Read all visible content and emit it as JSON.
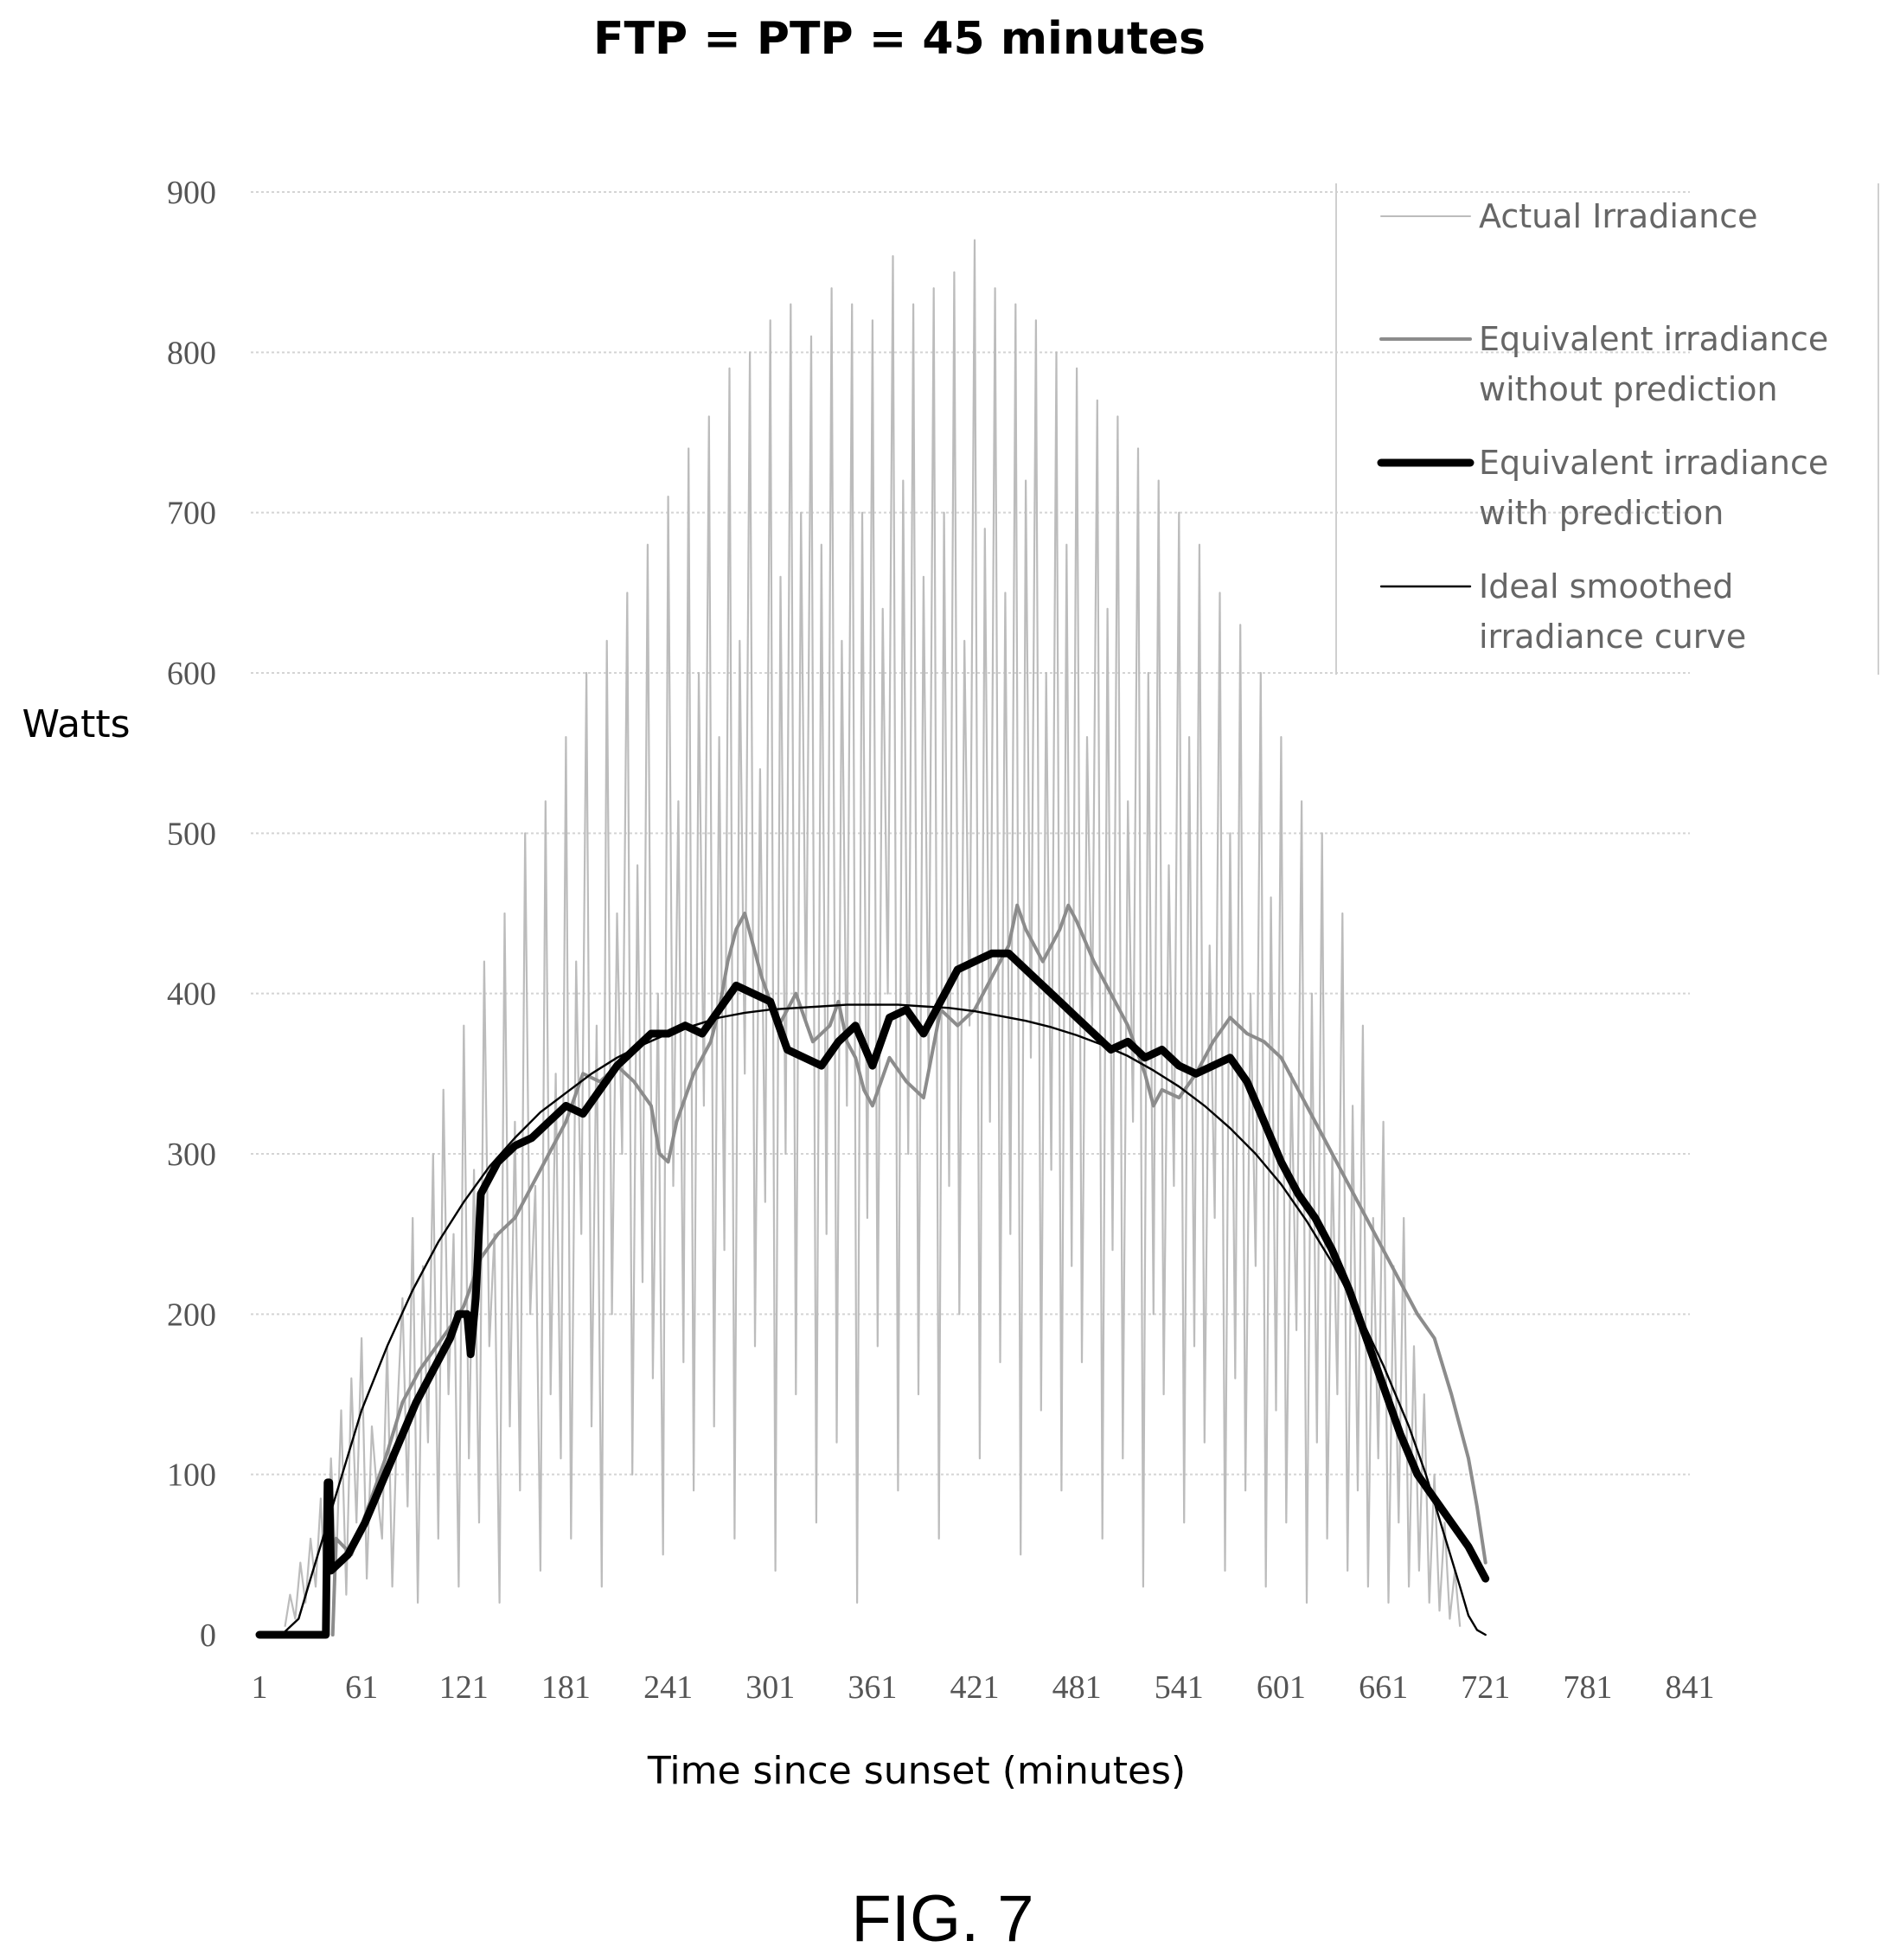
{
  "figure_label": "FIG. 7",
  "chart_data": {
    "type": "line",
    "title": "FTP = PTP = 45 minutes",
    "xlabel": "Time since sunset (minutes)",
    "ylabel": "Watts",
    "ylim": [
      0,
      900
    ],
    "xlim": [
      1,
      841
    ],
    "yticks": [
      "0",
      "100",
      "200",
      "300",
      "400",
      "500",
      "600",
      "700",
      "800",
      "900"
    ],
    "xticks": [
      "1",
      "61",
      "121",
      "181",
      "241",
      "301",
      "361",
      "421",
      "481",
      "541",
      "601",
      "661",
      "721",
      "781",
      "841"
    ],
    "grid": true,
    "legend_position": "top-right",
    "colors": {
      "actual": "#bcbcbc",
      "without_prediction": "#8c8c8c",
      "with_prediction": "#000000",
      "ideal": "#000000",
      "grid": "#d4d4d4"
    },
    "series": [
      {
        "name": "Actual Irradiance",
        "key": "actual",
        "style": "thin-noisy",
        "x_step": 3,
        "x_start": 16,
        "values": [
          5,
          25,
          10,
          45,
          20,
          60,
          30,
          85,
          15,
          110,
          40,
          140,
          25,
          160,
          70,
          185,
          35,
          130,
          90,
          60,
          180,
          30,
          140,
          210,
          80,
          260,
          20,
          230,
          120,
          300,
          60,
          340,
          150,
          250,
          30,
          380,
          110,
          290,
          70,
          420,
          180,
          250,
          20,
          450,
          130,
          320,
          90,
          500,
          200,
          280,
          40,
          520,
          150,
          350,
          110,
          560,
          60,
          420,
          250,
          600,
          130,
          380,
          30,
          620,
          200,
          450,
          300,
          650,
          100,
          480,
          220,
          680,
          160,
          400,
          50,
          710,
          280,
          520,
          170,
          740,
          90,
          600,
          330,
          760,
          130,
          560,
          240,
          790,
          60,
          620,
          350,
          800,
          180,
          540,
          270,
          820,
          40,
          660,
          300,
          830,
          150,
          700,
          380,
          810,
          70,
          680,
          250,
          840,
          120,
          620,
          330,
          830,
          20,
          700,
          260,
          820,
          180,
          640,
          400,
          860,
          90,
          720,
          300,
          830,
          150,
          660,
          350,
          840,
          60,
          700,
          280,
          850,
          200,
          620,
          380,
          870,
          110,
          690,
          320,
          840,
          170,
          650,
          250,
          830,
          50,
          720,
          360,
          820,
          140,
          600,
          290,
          800,
          90,
          680,
          230,
          790,
          170,
          560,
          380,
          770,
          60,
          640,
          240,
          760,
          110,
          520,
          320,
          740,
          30,
          600,
          200,
          720,
          150,
          480,
          280,
          700,
          70,
          560,
          180,
          680,
          120,
          430,
          260,
          650,
          40,
          500,
          160,
          630,
          90,
          400,
          230,
          600,
          30,
          460,
          140,
          560,
          70,
          350,
          190,
          520,
          20,
          400,
          120,
          500,
          60,
          300,
          150,
          450,
          40,
          330,
          90,
          380,
          30,
          260,
          110,
          320,
          20,
          230,
          70,
          260,
          30,
          180,
          40,
          150,
          20,
          100,
          15,
          70,
          10,
          40,
          5
        ]
      },
      {
        "name": "Equivalent irradiance without prediction",
        "key": "without_prediction",
        "style": "medium",
        "points": [
          [
            44,
            0
          ],
          [
            46,
            60
          ],
          [
            55,
            50
          ],
          [
            65,
            80
          ],
          [
            75,
            110
          ],
          [
            85,
            145
          ],
          [
            95,
            165
          ],
          [
            105,
            180
          ],
          [
            115,
            195
          ],
          [
            121,
            205
          ],
          [
            131,
            235
          ],
          [
            141,
            250
          ],
          [
            151,
            260
          ],
          [
            161,
            280
          ],
          [
            171,
            300
          ],
          [
            181,
            320
          ],
          [
            191,
            350
          ],
          [
            201,
            345
          ],
          [
            211,
            355
          ],
          [
            221,
            345
          ],
          [
            231,
            330
          ],
          [
            236,
            300
          ],
          [
            241,
            295
          ],
          [
            246,
            320
          ],
          [
            256,
            350
          ],
          [
            266,
            370
          ],
          [
            271,
            390
          ],
          [
            276,
            420
          ],
          [
            281,
            440
          ],
          [
            286,
            450
          ],
          [
            291,
            430
          ],
          [
            296,
            410
          ],
          [
            306,
            380
          ],
          [
            316,
            400
          ],
          [
            326,
            370
          ],
          [
            336,
            380
          ],
          [
            341,
            395
          ],
          [
            346,
            370
          ],
          [
            351,
            360
          ],
          [
            356,
            340
          ],
          [
            361,
            330
          ],
          [
            371,
            360
          ],
          [
            381,
            345
          ],
          [
            391,
            335
          ],
          [
            401,
            390
          ],
          [
            411,
            380
          ],
          [
            421,
            390
          ],
          [
            431,
            410
          ],
          [
            441,
            430
          ],
          [
            446,
            455
          ],
          [
            451,
            440
          ],
          [
            461,
            420
          ],
          [
            471,
            440
          ],
          [
            476,
            455
          ],
          [
            481,
            445
          ],
          [
            491,
            420
          ],
          [
            501,
            400
          ],
          [
            511,
            380
          ],
          [
            521,
            350
          ],
          [
            526,
            330
          ],
          [
            531,
            340
          ],
          [
            541,
            335
          ],
          [
            551,
            350
          ],
          [
            561,
            370
          ],
          [
            571,
            385
          ],
          [
            581,
            375
          ],
          [
            591,
            370
          ],
          [
            601,
            360
          ],
          [
            611,
            340
          ],
          [
            621,
            320
          ],
          [
            631,
            300
          ],
          [
            641,
            280
          ],
          [
            651,
            260
          ],
          [
            661,
            240
          ],
          [
            671,
            220
          ],
          [
            681,
            200
          ],
          [
            691,
            185
          ],
          [
            701,
            150
          ],
          [
            711,
            110
          ],
          [
            716,
            80
          ],
          [
            721,
            45
          ]
        ]
      },
      {
        "name": "Equivalent irradiance with prediction",
        "key": "with_prediction",
        "style": "thick",
        "points": [
          [
            1,
            0
          ],
          [
            40,
            0
          ],
          [
            41,
            95
          ],
          [
            42,
            95
          ],
          [
            43,
            40
          ],
          [
            53,
            50
          ],
          [
            63,
            70
          ],
          [
            73,
            95
          ],
          [
            83,
            120
          ],
          [
            93,
            145
          ],
          [
            103,
            165
          ],
          [
            113,
            185
          ],
          [
            118,
            200
          ],
          [
            123,
            200
          ],
          [
            125,
            175
          ],
          [
            128,
            210
          ],
          [
            131,
            275
          ],
          [
            141,
            295
          ],
          [
            151,
            305
          ],
          [
            161,
            310
          ],
          [
            171,
            320
          ],
          [
            181,
            330
          ],
          [
            191,
            325
          ],
          [
            201,
            340
          ],
          [
            211,
            355
          ],
          [
            221,
            365
          ],
          [
            231,
            375
          ],
          [
            241,
            375
          ],
          [
            251,
            380
          ],
          [
            261,
            375
          ],
          [
            271,
            390
          ],
          [
            281,
            405
          ],
          [
            291,
            400
          ],
          [
            301,
            395
          ],
          [
            311,
            365
          ],
          [
            321,
            360
          ],
          [
            331,
            355
          ],
          [
            341,
            370
          ],
          [
            351,
            380
          ],
          [
            361,
            355
          ],
          [
            371,
            385
          ],
          [
            381,
            390
          ],
          [
            391,
            375
          ],
          [
            401,
            395
          ],
          [
            411,
            415
          ],
          [
            421,
            420
          ],
          [
            431,
            425
          ],
          [
            441,
            425
          ],
          [
            451,
            415
          ],
          [
            461,
            405
          ],
          [
            471,
            395
          ],
          [
            481,
            385
          ],
          [
            491,
            375
          ],
          [
            501,
            365
          ],
          [
            511,
            370
          ],
          [
            521,
            360
          ],
          [
            531,
            365
          ],
          [
            541,
            355
          ],
          [
            551,
            350
          ],
          [
            561,
            355
          ],
          [
            571,
            360
          ],
          [
            581,
            345
          ],
          [
            591,
            320
          ],
          [
            601,
            295
          ],
          [
            611,
            275
          ],
          [
            621,
            260
          ],
          [
            631,
            240
          ],
          [
            641,
            215
          ],
          [
            651,
            185
          ],
          [
            661,
            155
          ],
          [
            671,
            125
          ],
          [
            681,
            100
          ],
          [
            691,
            85
          ],
          [
            701,
            70
          ],
          [
            711,
            55
          ],
          [
            721,
            35
          ]
        ]
      },
      {
        "name": "Ideal smoothed irradiance curve",
        "key": "ideal",
        "style": "thin-smooth",
        "points": [
          [
            14,
            0
          ],
          [
            24,
            10
          ],
          [
            31,
            35
          ],
          [
            41,
            70
          ],
          [
            51,
            105
          ],
          [
            61,
            140
          ],
          [
            76,
            180
          ],
          [
            91,
            215
          ],
          [
            106,
            245
          ],
          [
            121,
            270
          ],
          [
            136,
            292
          ],
          [
            151,
            310
          ],
          [
            166,
            326
          ],
          [
            181,
            338
          ],
          [
            196,
            350
          ],
          [
            211,
            360
          ],
          [
            226,
            368
          ],
          [
            241,
            375
          ],
          [
            256,
            380
          ],
          [
            271,
            385
          ],
          [
            286,
            388
          ],
          [
            301,
            390
          ],
          [
            316,
            391
          ],
          [
            331,
            392
          ],
          [
            346,
            393
          ],
          [
            361,
            393
          ],
          [
            376,
            393
          ],
          [
            391,
            392
          ],
          [
            406,
            391
          ],
          [
            421,
            389
          ],
          [
            436,
            386
          ],
          [
            451,
            383
          ],
          [
            466,
            379
          ],
          [
            481,
            374
          ],
          [
            496,
            368
          ],
          [
            511,
            361
          ],
          [
            526,
            352
          ],
          [
            541,
            342
          ],
          [
            556,
            330
          ],
          [
            571,
            316
          ],
          [
            586,
            300
          ],
          [
            601,
            281
          ],
          [
            616,
            258
          ],
          [
            631,
            232
          ],
          [
            646,
            202
          ],
          [
            661,
            168
          ],
          [
            676,
            130
          ],
          [
            686,
            100
          ],
          [
            696,
            65
          ],
          [
            706,
            30
          ],
          [
            711,
            12
          ],
          [
            716,
            3
          ],
          [
            721,
            0
          ]
        ]
      }
    ]
  }
}
